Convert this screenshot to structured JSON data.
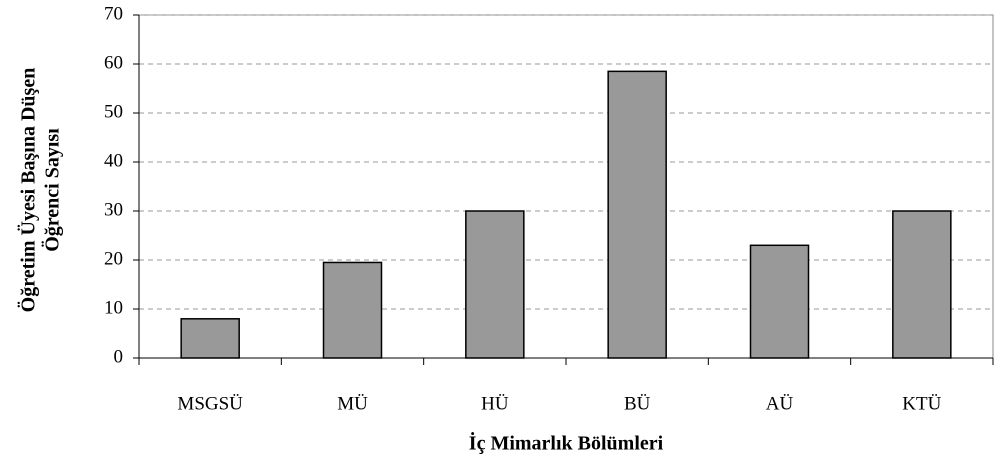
{
  "chart_data": {
    "type": "bar",
    "categories": [
      "MSGSÜ",
      "MÜ",
      "HÜ",
      "BÜ",
      "AÜ",
      "KTÜ"
    ],
    "values": [
      8,
      19.5,
      30,
      58.5,
      23,
      30
    ],
    "color": "#999999",
    "ylim": [
      0,
      70
    ],
    "yticks": [
      0,
      10,
      20,
      30,
      40,
      50,
      60,
      70
    ],
    "grid": true,
    "xlabel": "İç Mimarlık Bölümleri",
    "ylabel": [
      "Öğretim Üyesi Başına Düşen",
      "Öğrenci Sayısı"
    ]
  }
}
